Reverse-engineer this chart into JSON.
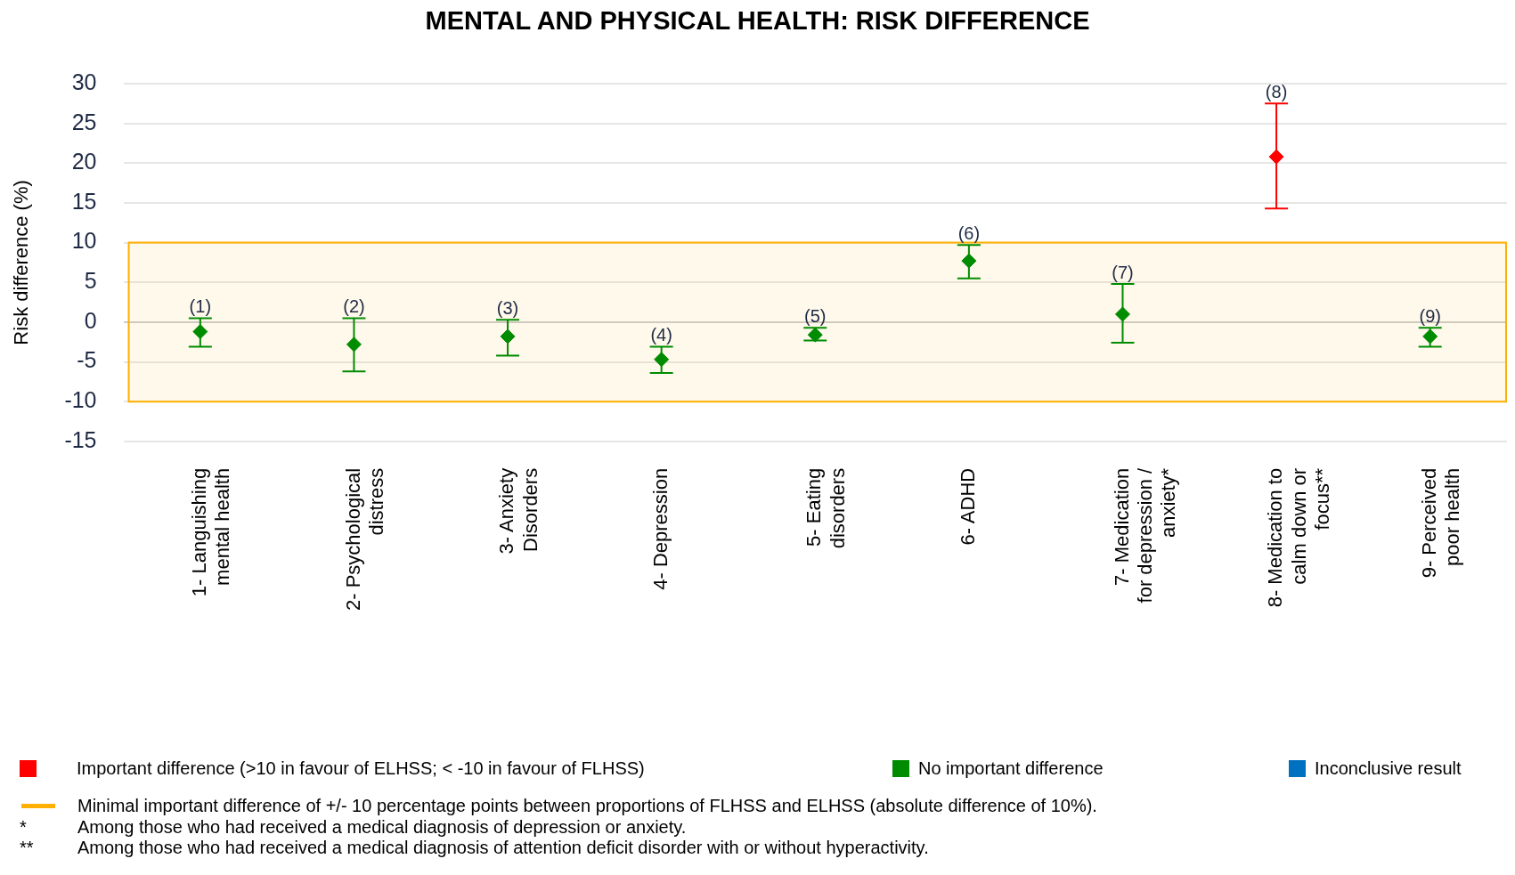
{
  "chart_data": {
    "type": "scatter",
    "title": "MENTAL AND PHYSICAL HEALTH: RISK DIFFERENCE",
    "ylabel": "Risk difference (%)",
    "categories": [
      "1- Languishing mental health",
      "2- Psychological distress",
      "3- Anxiety Disorders",
      "4- Depression",
      "5- Eating disorders",
      "6- ADHD",
      "7- Medication for depression / anxiety*",
      "8- Medication to calm down or focus**",
      "9- Perceived poor health"
    ],
    "series": [
      {
        "name": "Important difference (>10 in favour of ELHSS; < -10 in favour of FLHSS)",
        "color": "#ff0000",
        "values": [
          null,
          null,
          null,
          null,
          null,
          null,
          null,
          20.8,
          null
        ],
        "errors": [
          null,
          null,
          null,
          null,
          null,
          null,
          null,
          [
            14.3,
            27.5
          ],
          null
        ]
      },
      {
        "name": "No important difference",
        "color": "#008c00",
        "values": [
          -1.2,
          -2.8,
          -1.8,
          -4.7,
          -1.6,
          7.7,
          1.0,
          null,
          -1.8
        ],
        "errors": [
          [
            -3.1,
            0.5
          ],
          [
            -6.2,
            0.5
          ],
          [
            -4.2,
            0.3
          ],
          [
            -6.4,
            -3.1
          ],
          [
            -2.3,
            -0.7
          ],
          [
            5.5,
            9.7
          ],
          [
            -2.6,
            4.8
          ],
          null,
          [
            -3.1,
            -0.7
          ]
        ]
      },
      {
        "name": "Inconclusive result",
        "color": "#0070c0",
        "values": [
          null,
          null,
          null,
          null,
          null,
          null,
          null,
          null,
          null
        ]
      }
    ],
    "ylim": [
      -15,
      30
    ],
    "yticks": [
      -15,
      -10,
      -5,
      0,
      5,
      10,
      15,
      20,
      25,
      30
    ],
    "grid": "y",
    "marker": "diamond",
    "legend": "bottom",
    "bands": [
      {
        "axis": "y",
        "from": -10,
        "to": 10,
        "label": "Minimal important difference of +/- 10 percentage points between proportions of FLHSS and ELHSS (absolute difference of 10%).",
        "color": "#ffb000"
      }
    ],
    "annotations": [
      {
        "text": "(1)",
        "x": "1- Languishing mental health",
        "y": 0.5
      },
      {
        "text": "(2)",
        "x": "2- Psychological distress",
        "y": 0.5
      },
      {
        "text": "(3)",
        "x": "3- Anxiety Disorders",
        "y": 0.3
      },
      {
        "text": "(4)",
        "x": "4- Depression",
        "y": -3.1
      },
      {
        "text": "(5)",
        "x": "5- Eating disorders",
        "y": -0.7
      },
      {
        "text": "(6)",
        "x": "6- ADHD",
        "y": 9.7
      },
      {
        "text": "(7)",
        "x": "7- Medication for depression / anxiety*",
        "y": 4.8
      },
      {
        "text": "(8)",
        "x": "8- Medication to calm down or focus**",
        "y": 27.5
      },
      {
        "text": "(9)",
        "x": "9- Perceived poor health",
        "y": -0.7
      },
      "* Among those who had received a medical diagnosis of depression or anxiety.",
      "** Among those who had received a medical diagnosis of attention deficit disorder with or without hyperactivity."
    ]
  }
}
